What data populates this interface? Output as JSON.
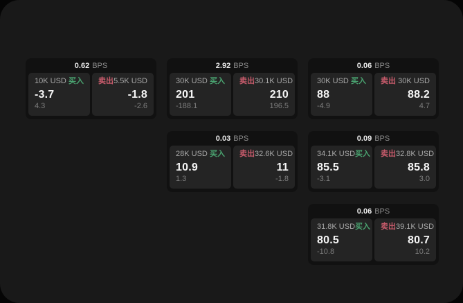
{
  "labels": {
    "bps_unit": "BPS",
    "buy": "买入",
    "sell": "卖出"
  },
  "colors": {
    "page_background": "#191919",
    "card_background": "#111111",
    "subcard_background": "#242424",
    "buy_green": "#4aa370",
    "sell_red": "#c75b6b",
    "value_white": "#f5f5f5",
    "muted_gray": "#8b8b8b"
  },
  "cards": [
    {
      "bps": "0.62",
      "buy": {
        "amount": "10K USD",
        "price": "-3.7",
        "delta": "4.3"
      },
      "sell": {
        "amount": "5.5K USD",
        "price": "-1.8",
        "delta": "-2.6"
      }
    },
    {
      "bps": "2.92",
      "buy": {
        "amount": "30K USD",
        "price": "201",
        "delta": "-188.1"
      },
      "sell": {
        "amount": "30.1K USD",
        "price": "210",
        "delta": "196.5"
      }
    },
    {
      "bps": "0.06",
      "buy": {
        "amount": "30K USD",
        "price": "88",
        "delta": "-4.9"
      },
      "sell": {
        "amount": "30K USD",
        "price": "88.2",
        "delta": "4.7"
      }
    },
    {
      "bps": "0.03",
      "buy": {
        "amount": "28K USD",
        "price": "10.9",
        "delta": "1.3"
      },
      "sell": {
        "amount": "32.6K USD",
        "price": "11",
        "delta": "-1.8"
      }
    },
    {
      "bps": "0.09",
      "buy": {
        "amount": "34.1K USD",
        "price": "85.5",
        "delta": "-3.1"
      },
      "sell": {
        "amount": "32.8K USD",
        "price": "85.8",
        "delta": "3.0"
      }
    },
    {
      "bps": "0.06",
      "buy": {
        "amount": "31.8K USD",
        "price": "80.5",
        "delta": "-10.8"
      },
      "sell": {
        "amount": "39.1K USD",
        "price": "80.7",
        "delta": "10.2"
      }
    }
  ]
}
